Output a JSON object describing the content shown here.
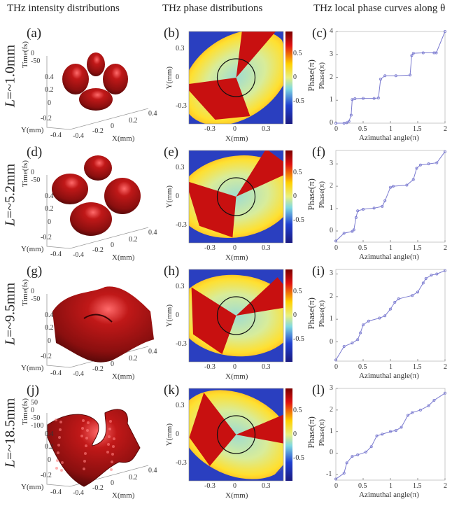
{
  "column_titles": [
    "THz intensity distributions",
    "THz phase distributions",
    "THz local phase curves along θ"
  ],
  "rows": [
    {
      "length_symbol": "L",
      "length_value": "=~1.0mm",
      "intensity": {
        "label": "(a)",
        "time_label": "Time(fs)",
        "time_ticks": [
          "0",
          "-50"
        ],
        "y_label": "Y(mm)",
        "y_ticks": [
          "0.4",
          "0.2",
          "0",
          "-0.2",
          "-0.4"
        ],
        "x_label": "X(mm)",
        "x_ticks": [
          "-0.4",
          "-0.2",
          "0",
          "0.2",
          "0.4"
        ]
      },
      "phase": {
        "label": "(b)",
        "x_label": "X(mm)",
        "y_label": "Y(mm)",
        "x_ticks": [
          "-0.3",
          "0",
          "0.3"
        ],
        "y_ticks": [
          "0.3",
          "0",
          "-0.3"
        ],
        "colorbar_label": "Phase(π)",
        "colorbar_ticks": [
          "0.5",
          "0",
          "-0.5"
        ]
      },
      "curve_label": "(c)"
    },
    {
      "length_symbol": "L",
      "length_value": "=~5.2mm",
      "intensity": {
        "label": "(d)",
        "time_label": "Time(fs)",
        "time_ticks": [
          "0",
          "-50"
        ],
        "y_label": "Y(mm)",
        "y_ticks": [
          "0.4",
          "0.2",
          "0",
          "-0.2",
          "-0.4"
        ],
        "x_label": "X(mm)",
        "x_ticks": [
          "-0.4",
          "-0.2",
          "0",
          "0.2",
          "0.4"
        ]
      },
      "phase": {
        "label": "(e)",
        "x_label": "X(mm)",
        "y_label": "Y(mm)",
        "x_ticks": [
          "-0.3",
          "0",
          "0.3"
        ],
        "y_ticks": [
          "0.3",
          "0",
          "-0.3"
        ],
        "colorbar_label": "Phase(π)",
        "colorbar_ticks": [
          "0.5",
          "0",
          "-0.5"
        ]
      },
      "curve_label": "(f)"
    },
    {
      "length_symbol": "L",
      "length_value": "=~9.5mm",
      "intensity": {
        "label": "(g)",
        "time_label": "Time(fs)",
        "time_ticks": [
          "0",
          "-50"
        ],
        "y_label": "Y(mm)",
        "y_ticks": [
          "0.4",
          "0.2",
          "0",
          "-0.2",
          "-0.4"
        ],
        "x_label": "X(mm)",
        "x_ticks": [
          "-0.4",
          "-0.2",
          "0",
          "0.2",
          "0.4"
        ]
      },
      "phase": {
        "label": "(h)",
        "x_label": "X(mm)",
        "y_label": "Y(mm)",
        "x_ticks": [
          "-0.3",
          "0",
          "0.3"
        ],
        "y_ticks": [
          "0.3",
          "0",
          "-0.3"
        ],
        "colorbar_label": "Phase(π)",
        "colorbar_ticks": [
          "0.5",
          "0",
          "-0.5"
        ]
      },
      "curve_label": "(i)"
    },
    {
      "length_symbol": "L",
      "length_value": "=~18.5mm",
      "intensity": {
        "label": "(j)",
        "time_label": "Time(fs)",
        "time_ticks": [
          "50",
          "0",
          "-50",
          "-100"
        ],
        "y_label": "Y(mm)",
        "y_ticks": [
          "0.4",
          "0.2",
          "0",
          "-0.2",
          "-0.4"
        ],
        "x_label": "X(mm)",
        "x_ticks": [
          "-0.4",
          "-0.2",
          "0",
          "0.2",
          "0.4"
        ]
      },
      "phase": {
        "label": "(k)",
        "x_label": "X(mm)",
        "y_label": "Y(mm)",
        "x_ticks": [
          "-0.3",
          "0",
          "0.3"
        ],
        "y_ticks": [
          "0.3",
          "0",
          "-0.3"
        ],
        "colorbar_label": "Phase(π)",
        "colorbar_ticks": [
          "0.5",
          "0",
          "-0.5"
        ]
      },
      "curve_label": "(l)"
    }
  ],
  "colors": {
    "surface": "#a31515",
    "curve": "#7b7bd0"
  },
  "chart_data": [
    {
      "type": "line",
      "panel": "(c)",
      "xlabel": "Azimuthal angle(π)",
      "ylabel": "Phase(π)",
      "xlim": [
        0,
        2
      ],
      "ylim": [
        0,
        4
      ],
      "x_ticks": [
        "0",
        "0.5",
        "1",
        "1.5",
        "2"
      ],
      "y_ticks": [
        "0",
        "1",
        "2",
        "3",
        "4"
      ],
      "grid": false,
      "x": [
        0,
        0.15,
        0.2,
        0.24,
        0.28,
        0.3,
        0.35,
        0.5,
        0.7,
        0.78,
        0.82,
        0.9,
        1.1,
        1.36,
        1.39,
        1.42,
        1.6,
        1.8,
        1.84,
        2
      ],
      "y": [
        0,
        0,
        0.02,
        0.08,
        0.35,
        1.03,
        1.07,
        1.08,
        1.08,
        1.1,
        1.92,
        2.07,
        2.07,
        2.1,
        2.95,
        3.05,
        3.07,
        3.07,
        3.07,
        4
      ]
    },
    {
      "type": "line",
      "panel": "(f)",
      "xlabel": "Azimuthal angle(π)",
      "ylabel": "Phase(π)",
      "xlim": [
        0,
        2
      ],
      "ylim": [
        -0.5,
        3.6
      ],
      "x_ticks": [
        "0",
        "0.5",
        "1",
        "1.5",
        "2"
      ],
      "y_ticks": [
        "0",
        "1",
        "2",
        "3"
      ],
      "grid": false,
      "x": [
        0,
        0.15,
        0.3,
        0.33,
        0.37,
        0.4,
        0.5,
        0.7,
        0.85,
        0.9,
        1,
        1.05,
        1.3,
        1.42,
        1.48,
        1.55,
        1.7,
        1.85,
        2
      ],
      "y": [
        -0.45,
        -0.1,
        -0.02,
        0.05,
        0.6,
        0.9,
        0.97,
        1.02,
        1.1,
        1.35,
        1.95,
        2,
        2.05,
        2.3,
        2.8,
        2.95,
        3,
        3.05,
        3.55
      ]
    },
    {
      "type": "line",
      "panel": "(i)",
      "xlabel": "Azimuthal angle(π)",
      "ylabel": "Phase(π)",
      "xlim": [
        0,
        2
      ],
      "ylim": [
        -0.85,
        3.2
      ],
      "x_ticks": [
        "0",
        "0.5",
        "1",
        "1.5",
        "2"
      ],
      "y_ticks": [
        "0",
        "1",
        "2",
        "3"
      ],
      "grid": false,
      "x": [
        0,
        0.15,
        0.3,
        0.4,
        0.45,
        0.5,
        0.6,
        0.8,
        0.9,
        1,
        1.08,
        1.15,
        1.4,
        1.5,
        1.6,
        1.65,
        1.75,
        1.85,
        2
      ],
      "y": [
        -0.8,
        -0.2,
        -0.05,
        0.1,
        0.4,
        0.75,
        0.92,
        1.05,
        1.15,
        1.45,
        1.75,
        1.9,
        2.05,
        2.2,
        2.6,
        2.8,
        2.95,
        3.0,
        3.15
      ]
    },
    {
      "type": "line",
      "panel": "(l)",
      "xlabel": "Azimuthal angle(π)",
      "ylabel": "Phase(π)",
      "xlim": [
        0,
        2
      ],
      "ylim": [
        -1.25,
        3
      ],
      "x_ticks": [
        "0",
        "0.5",
        "1",
        "1.5",
        "2"
      ],
      "y_ticks": [
        "-1",
        "0",
        "1",
        "2",
        "3"
      ],
      "grid": false,
      "x": [
        0,
        0.15,
        0.2,
        0.3,
        0.4,
        0.55,
        0.65,
        0.75,
        0.85,
        1,
        1.1,
        1.2,
        1.32,
        1.4,
        1.55,
        1.7,
        1.8,
        2
      ],
      "y": [
        -1.2,
        -0.93,
        -0.45,
        -0.15,
        -0.08,
        0.05,
        0.3,
        0.8,
        0.88,
        1.0,
        1.05,
        1.2,
        1.75,
        1.88,
        2.0,
        2.2,
        2.45,
        2.78
      ]
    }
  ]
}
